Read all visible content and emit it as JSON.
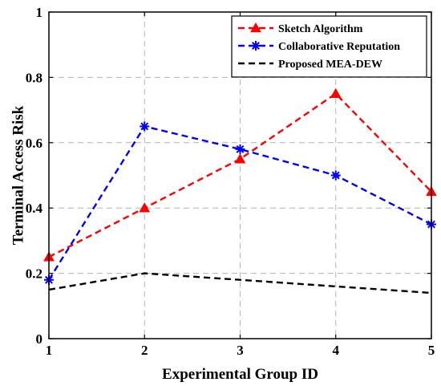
{
  "chart_data": {
    "type": "line",
    "xlabel": "Experimental Group ID",
    "ylabel": "Terminal Access Risk",
    "x": [
      1,
      2,
      3,
      4,
      5
    ],
    "xlim": [
      1,
      5
    ],
    "ylim": [
      0,
      1
    ],
    "xticks": [
      1,
      2,
      3,
      4,
      5
    ],
    "yticks": [
      0,
      0.2,
      0.4,
      0.6,
      0.8,
      1
    ],
    "ytick_labels": [
      "0",
      "0.2",
      "0.4",
      "0.6",
      "0.8",
      "1"
    ],
    "grid": true,
    "legend_position": "top-right",
    "series": [
      {
        "name": "Sketch Algorithm",
        "values": [
          0.25,
          0.4,
          0.55,
          0.75,
          0.45
        ],
        "color": "#ff0000",
        "marker": "triangle"
      },
      {
        "name": "Collaborative Reputation",
        "values": [
          0.18,
          0.65,
          0.58,
          0.5,
          0.35
        ],
        "color": "#0000ff",
        "marker": "asterisk"
      },
      {
        "name": "Proposed MEA-DEW",
        "values": [
          0.15,
          0.2,
          0.18,
          0.16,
          0.14
        ],
        "color": "#000000",
        "marker": "none"
      }
    ]
  }
}
